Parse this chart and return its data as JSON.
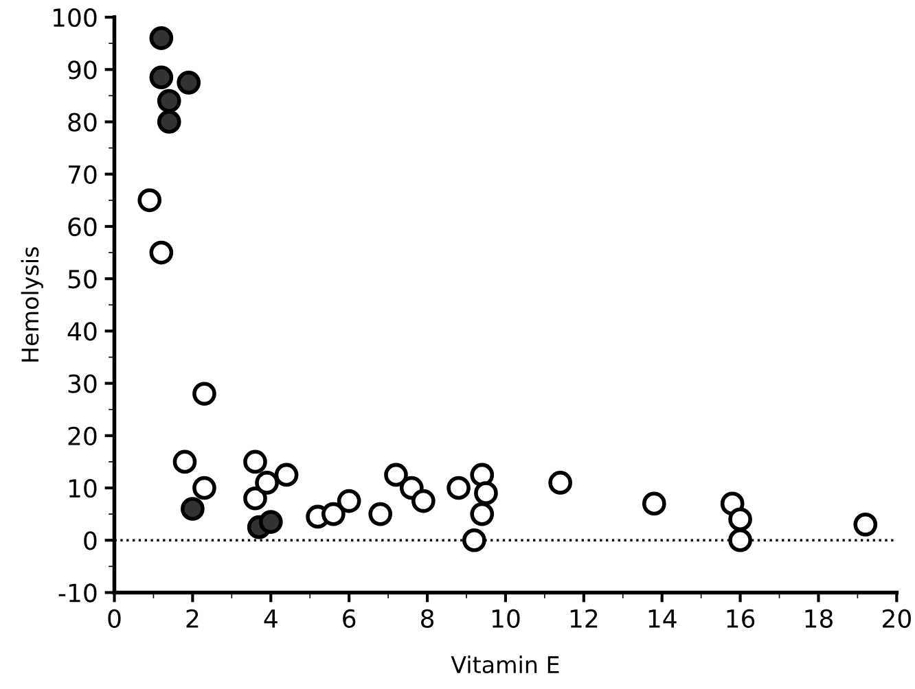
{
  "chart_data": {
    "type": "scatter",
    "xlabel": "Vitamin E",
    "ylabel": "Hemolysis",
    "xlim": [
      0,
      20
    ],
    "xticks": [
      0,
      2,
      4,
      6,
      8,
      10,
      12,
      14,
      16,
      18,
      20
    ],
    "ylim": [
      -10,
      100
    ],
    "yticks": [
      -10,
      0,
      10,
      20,
      30,
      40,
      50,
      60,
      70,
      80,
      90,
      100
    ],
    "grid": false,
    "legend": false,
    "marker": "circle",
    "series": [
      {
        "color": "#333333",
        "x": [
          1.2,
          1.2,
          1.9,
          1.4,
          1.4,
          2.0,
          3.7,
          4.0
        ],
        "values": [
          96,
          88.5,
          87.5,
          84,
          80,
          6,
          2.5,
          3.5
        ]
      },
      {
        "color": "#ffffff",
        "x": [
          0.9,
          1.2,
          2.3,
          1.8,
          2.3,
          3.6,
          3.6,
          3.9,
          4.4,
          5.2,
          5.6,
          6.0,
          6.8,
          7.2,
          7.6,
          7.9,
          8.8,
          9.2,
          9.4,
          9.5,
          9.4,
          11.4,
          13.8,
          15.8,
          16.0,
          16.0,
          19.2
        ],
        "values": [
          65,
          55,
          28,
          15,
          10,
          15,
          8,
          11,
          12.5,
          4.5,
          5,
          7.5,
          5,
          12.5,
          10,
          7.5,
          10,
          0,
          12.5,
          9,
          5,
          11,
          7,
          7,
          4,
          0,
          3
        ]
      }
    ],
    "ref_lines": [
      {
        "axis": "y",
        "value": 0,
        "line_style": "dotted",
        "color": "#000000"
      }
    ]
  }
}
